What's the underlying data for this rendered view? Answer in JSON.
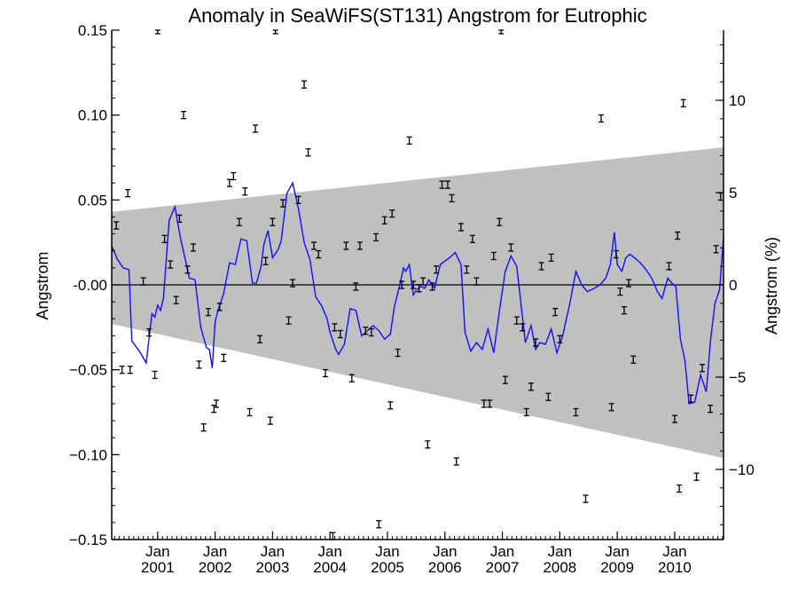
{
  "chart_data": {
    "type": "line",
    "title": "Anomaly in SeaWiFS(ST131) Angstrom for Eutrophic",
    "ylabel": "Angstrom",
    "ylabel_right": "Angstrom (%)",
    "xlabel": "",
    "xlim": [
      2000.2,
      2010.85
    ],
    "ylim": [
      -0.15,
      0.15
    ],
    "ylim_right": [
      -13.8,
      13.8
    ],
    "y_ticks": [
      {
        "value": 0.15,
        "label": "0.15"
      },
      {
        "value": 0.1,
        "label": "0.10"
      },
      {
        "value": 0.05,
        "label": "0.05"
      },
      {
        "value": 0.0,
        "label": "-0.00"
      },
      {
        "value": -0.05,
        "label": "−0.05"
      },
      {
        "value": -0.1,
        "label": "−0.10"
      },
      {
        "value": -0.15,
        "label": "−0.15"
      }
    ],
    "y_right_ticks": [
      {
        "value": 10,
        "label": "10"
      },
      {
        "value": 5,
        "label": "5"
      },
      {
        "value": 0,
        "label": "0"
      },
      {
        "value": -5,
        "label": "−5"
      },
      {
        "value": -10,
        "label": "−10"
      }
    ],
    "x_ticks": [
      {
        "value": 2001.0,
        "month": "Jan",
        "year": "2001"
      },
      {
        "value": 2002.0,
        "month": "Jan",
        "year": "2002"
      },
      {
        "value": 2003.0,
        "month": "Jan",
        "year": "2003"
      },
      {
        "value": 2004.0,
        "month": "Jan",
        "year": "2004"
      },
      {
        "value": 2005.0,
        "month": "Jan",
        "year": "2005"
      },
      {
        "value": 2006.0,
        "month": "Jan",
        "year": "2006"
      },
      {
        "value": 2007.0,
        "month": "Jan",
        "year": "2007"
      },
      {
        "value": 2008.0,
        "month": "Jan",
        "year": "2008"
      },
      {
        "value": 2009.0,
        "month": "Jan",
        "year": "2009"
      },
      {
        "value": 2010.0,
        "month": "Jan",
        "year": "2010"
      }
    ],
    "envelope": {
      "color": "#c0c0c0",
      "upper": [
        [
          2000.2,
          0.043
        ],
        [
          2010.85,
          0.081
        ]
      ],
      "lower": [
        [
          2000.2,
          -0.023
        ],
        [
          2010.85,
          -0.102
        ]
      ]
    },
    "zero_line": {
      "y": 0,
      "color": "#000000"
    },
    "series": [
      {
        "kind": "line",
        "color": "#1010ff",
        "points": [
          [
            2000.2,
            0.023
          ],
          [
            2000.3,
            0.015
          ],
          [
            2000.4,
            0.01
          ],
          [
            2000.5,
            0.009
          ],
          [
            2000.55,
            -0.033
          ],
          [
            2000.7,
            -0.04
          ],
          [
            2000.8,
            -0.046
          ],
          [
            2000.9,
            -0.017
          ],
          [
            2000.95,
            -0.019
          ],
          [
            2001.0,
            -0.012
          ],
          [
            2001.05,
            -0.015
          ],
          [
            2001.1,
            -0.008
          ],
          [
            2001.2,
            0.038
          ],
          [
            2001.3,
            0.046
          ],
          [
            2001.4,
            0.027
          ],
          [
            2001.5,
            0.012
          ],
          [
            2001.55,
            0.004
          ],
          [
            2001.65,
            0.003
          ],
          [
            2001.75,
            -0.025
          ],
          [
            2001.85,
            -0.037
          ],
          [
            2001.9,
            -0.038
          ],
          [
            2001.95,
            -0.049
          ],
          [
            2002.0,
            -0.022
          ],
          [
            2002.05,
            -0.015
          ],
          [
            2002.15,
            -0.005
          ],
          [
            2002.25,
            0.013
          ],
          [
            2002.35,
            0.012
          ],
          [
            2002.45,
            0.027
          ],
          [
            2002.55,
            0.026
          ],
          [
            2002.65,
            0.001
          ],
          [
            2002.72,
            0.001
          ],
          [
            2002.8,
            0.011
          ],
          [
            2002.85,
            0.024
          ],
          [
            2002.92,
            0.032
          ],
          [
            2003.0,
            0.016
          ],
          [
            2003.1,
            0.021
          ],
          [
            2003.15,
            0.026
          ],
          [
            2003.25,
            0.054
          ],
          [
            2003.35,
            0.06
          ],
          [
            2003.45,
            0.045
          ],
          [
            2003.55,
            0.025
          ],
          [
            2003.65,
            0.015
          ],
          [
            2003.75,
            -0.007
          ],
          [
            2003.85,
            -0.012
          ],
          [
            2003.95,
            -0.02
          ],
          [
            2004.0,
            -0.028
          ],
          [
            2004.1,
            -0.038
          ],
          [
            2004.15,
            -0.041
          ],
          [
            2004.25,
            -0.035
          ],
          [
            2004.35,
            -0.014
          ],
          [
            2004.45,
            -0.015
          ],
          [
            2004.55,
            -0.03
          ],
          [
            2004.65,
            -0.027
          ],
          [
            2004.75,
            -0.024
          ],
          [
            2004.85,
            -0.027
          ],
          [
            2004.95,
            -0.032
          ],
          [
            2005.05,
            -0.029
          ],
          [
            2005.12,
            -0.013
          ],
          [
            2005.2,
            -0.002
          ],
          [
            2005.28,
            0.01
          ],
          [
            2005.32,
            0.008
          ],
          [
            2005.38,
            0.012
          ],
          [
            2005.45,
            -0.006
          ],
          [
            2005.5,
            -0.003
          ],
          [
            2005.58,
            -0.001
          ],
          [
            2005.65,
            -0.002
          ],
          [
            2005.72,
            0.003
          ],
          [
            2005.82,
            -0.002
          ],
          [
            2005.92,
            0.012
          ],
          [
            2006.0,
            0.014
          ],
          [
            2006.08,
            0.016
          ],
          [
            2006.18,
            0.019
          ],
          [
            2006.28,
            0.012
          ],
          [
            2006.35,
            -0.028
          ],
          [
            2006.45,
            -0.039
          ],
          [
            2006.55,
            -0.034
          ],
          [
            2006.65,
            -0.038
          ],
          [
            2006.75,
            -0.026
          ],
          [
            2006.85,
            -0.04
          ],
          [
            2006.95,
            -0.015
          ],
          [
            2007.05,
            0.008
          ],
          [
            2007.15,
            0.017
          ],
          [
            2007.25,
            0.011
          ],
          [
            2007.32,
            -0.01
          ],
          [
            2007.4,
            -0.034
          ],
          [
            2007.5,
            -0.024
          ],
          [
            2007.58,
            -0.038
          ],
          [
            2007.65,
            -0.034
          ],
          [
            2007.75,
            -0.035
          ],
          [
            2007.85,
            -0.026
          ],
          [
            2007.95,
            -0.04
          ],
          [
            2008.05,
            -0.03
          ],
          [
            2008.18,
            -0.01
          ],
          [
            2008.28,
            0.008
          ],
          [
            2008.38,
            0.0
          ],
          [
            2008.48,
            -0.004
          ],
          [
            2008.6,
            -0.002
          ],
          [
            2008.7,
            0.0
          ],
          [
            2008.8,
            0.004
          ],
          [
            2008.88,
            0.012
          ],
          [
            2008.95,
            0.031
          ],
          [
            2009.0,
            0.012
          ],
          [
            2009.08,
            0.008
          ],
          [
            2009.15,
            0.016
          ],
          [
            2009.22,
            0.018
          ],
          [
            2009.3,
            0.016
          ],
          [
            2009.4,
            0.013
          ],
          [
            2009.5,
            0.009
          ],
          [
            2009.6,
            0.004
          ],
          [
            2009.7,
            -0.004
          ],
          [
            2009.78,
            -0.008
          ],
          [
            2009.88,
            0.004
          ],
          [
            2009.95,
            0.001
          ],
          [
            2010.02,
            -0.001
          ],
          [
            2010.1,
            -0.032
          ],
          [
            2010.18,
            -0.045
          ],
          [
            2010.25,
            -0.07
          ],
          [
            2010.35,
            -0.069
          ],
          [
            2010.45,
            -0.053
          ],
          [
            2010.55,
            -0.063
          ],
          [
            2010.62,
            -0.034
          ],
          [
            2010.7,
            -0.011
          ],
          [
            2010.78,
            -0.003
          ],
          [
            2010.85,
            0.028
          ]
        ]
      },
      {
        "kind": "errorbar",
        "color": "#000000",
        "points": [
          [
            2000.28,
            0.035
          ],
          [
            2000.38,
            -0.05
          ],
          [
            2000.48,
            0.054
          ],
          [
            2000.52,
            -0.05
          ],
          [
            2000.75,
            0.002
          ],
          [
            2000.85,
            -0.028
          ],
          [
            2000.95,
            -0.053
          ],
          [
            2001.12,
            0.027
          ],
          [
            2001.22,
            0.012
          ],
          [
            2001.32,
            -0.009
          ],
          [
            2001.38,
            0.039
          ],
          [
            2001.45,
            0.1
          ],
          [
            2001.52,
            0.009
          ],
          [
            2001.62,
            0.022
          ],
          [
            2001.72,
            -0.047
          ],
          [
            2001.8,
            -0.084
          ],
          [
            2001.88,
            -0.016
          ],
          [
            2001.98,
            -0.073
          ],
          [
            2002.02,
            -0.07
          ],
          [
            2002.08,
            -0.013
          ],
          [
            2002.15,
            -0.043
          ],
          [
            2002.25,
            0.06
          ],
          [
            2002.32,
            0.064
          ],
          [
            2002.42,
            0.037
          ],
          [
            2002.52,
            0.055
          ],
          [
            2002.6,
            -0.075
          ],
          [
            2002.7,
            0.092
          ],
          [
            2002.78,
            -0.032
          ],
          [
            2002.88,
            0.014
          ],
          [
            2002.96,
            -0.08
          ],
          [
            2003.0,
            0.037
          ],
          [
            2003.18,
            0.048
          ],
          [
            2003.28,
            -0.021
          ],
          [
            2003.35,
            0.001
          ],
          [
            2003.45,
            0.05
          ],
          [
            2003.55,
            0.118
          ],
          [
            2003.62,
            0.078
          ],
          [
            2003.72,
            0.023
          ],
          [
            2003.8,
            0.018
          ],
          [
            2003.92,
            -0.052
          ],
          [
            2004.08,
            -0.025
          ],
          [
            2004.18,
            -0.029
          ],
          [
            2004.28,
            0.023
          ],
          [
            2004.38,
            -0.055
          ],
          [
            2004.45,
            -0.001
          ],
          [
            2004.52,
            0.023
          ],
          [
            2004.62,
            -0.027
          ],
          [
            2004.72,
            -0.028
          ],
          [
            2004.8,
            0.028
          ],
          [
            2004.95,
            0.038
          ],
          [
            2005.05,
            -0.071
          ],
          [
            2005.08,
            0.042
          ],
          [
            2005.18,
            -0.04
          ],
          [
            2005.25,
            0.0
          ],
          [
            2005.38,
            0.085
          ],
          [
            2005.45,
            0.0
          ],
          [
            2005.55,
            -0.002
          ],
          [
            2005.62,
            0.002
          ],
          [
            2005.7,
            -0.094
          ],
          [
            2005.78,
            -0.001
          ],
          [
            2005.85,
            0.009
          ],
          [
            2005.95,
            0.059
          ],
          [
            2006.05,
            0.059
          ],
          [
            2006.12,
            0.051
          ],
          [
            2006.2,
            -0.104
          ],
          [
            2006.28,
            0.034
          ],
          [
            2006.38,
            0.009
          ],
          [
            2006.48,
            0.027
          ],
          [
            2006.55,
            0.002
          ],
          [
            2006.68,
            -0.07
          ],
          [
            2006.78,
            -0.07
          ],
          [
            2006.85,
            0.017
          ],
          [
            2006.95,
            0.037
          ],
          [
            2007.05,
            -0.056
          ],
          [
            2007.15,
            0.022
          ],
          [
            2007.25,
            -0.021
          ],
          [
            2007.35,
            -0.025
          ],
          [
            2007.42,
            -0.075
          ],
          [
            2007.5,
            -0.06
          ],
          [
            2007.58,
            -0.034
          ],
          [
            2007.68,
            0.011
          ],
          [
            2007.8,
            -0.066
          ],
          [
            2007.85,
            0.016
          ],
          [
            2007.92,
            -0.016
          ],
          [
            2008.0,
            -0.032
          ],
          [
            2008.28,
            -0.075
          ],
          [
            2008.45,
            -0.126
          ],
          [
            2008.72,
            0.098
          ],
          [
            2008.9,
            -0.072
          ],
          [
            2008.98,
            0.018
          ],
          [
            2009.05,
            -0.004
          ],
          [
            2009.12,
            -0.015
          ],
          [
            2009.2,
            0.001
          ],
          [
            2009.28,
            -0.044
          ],
          [
            2009.9,
            0.011
          ],
          [
            2010.0,
            -0.079
          ],
          [
            2010.05,
            0.029
          ],
          [
            2010.08,
            -0.12
          ],
          [
            2010.15,
            0.107
          ],
          [
            2010.28,
            -0.067
          ],
          [
            2010.38,
            -0.113
          ],
          [
            2010.48,
            -0.049
          ],
          [
            2010.62,
            -0.073
          ],
          [
            2010.72,
            0.021
          ],
          [
            2010.8,
            0.052
          ],
          [
            2001.0,
            0.15
          ],
          [
            2003.05,
            0.15
          ],
          [
            2006.98,
            0.15
          ],
          [
            2004.05,
            -0.148
          ],
          [
            2004.85,
            -0.141
          ]
        ]
      }
    ]
  }
}
